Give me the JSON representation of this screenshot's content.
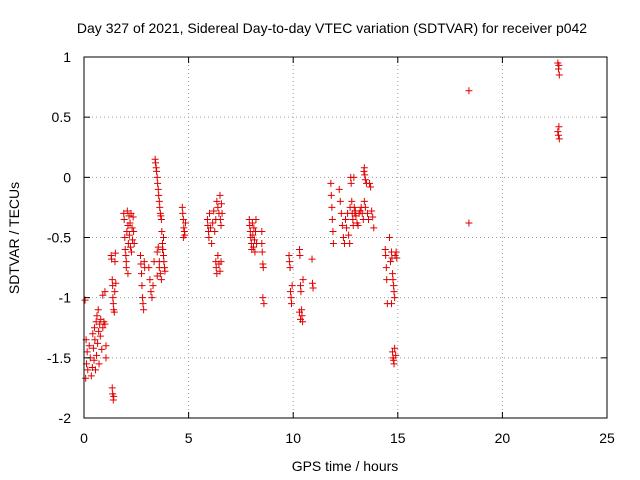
{
  "chart_data": {
    "type": "scatter",
    "title": "Day 327 of 2021, Sidereal Day-to-day VTEC variation (SDTVAR) for receiver p042",
    "xlabel": "GPS time / hours",
    "ylabel": "SDTVAR / TECUs",
    "xlim": [
      0,
      25
    ],
    "ylim": [
      -2,
      1
    ],
    "grid": true,
    "marker": "+",
    "marker_color": "#e00000",
    "xticks": [
      "0",
      "5",
      "10",
      "15",
      "20",
      "25"
    ],
    "xtick_values": [
      0,
      5,
      10,
      15,
      20,
      25
    ],
    "yticks": [
      "1",
      "0.5",
      "0",
      "-0.5",
      "-1",
      "-1.5",
      "-2"
    ],
    "ytick_values": [
      1,
      0.5,
      0,
      -0.5,
      -1,
      -1.5,
      -2
    ],
    "series": [
      {
        "name": "SDTVAR",
        "points": [
          [
            0.05,
            -1.02
          ],
          [
            0.08,
            -1.67
          ],
          [
            0.1,
            -1.35
          ],
          [
            0.12,
            -1.55
          ],
          [
            0.15,
            -1.45
          ],
          [
            0.18,
            -1.6
          ],
          [
            0.25,
            -1.4
          ],
          [
            0.3,
            -1.5
          ],
          [
            0.35,
            -1.65
          ],
          [
            0.4,
            -1.58
          ],
          [
            0.42,
            -1.3
          ],
          [
            0.45,
            -1.42
          ],
          [
            0.48,
            -1.52
          ],
          [
            0.5,
            -1.25
          ],
          [
            0.52,
            -1.35
          ],
          [
            0.55,
            -1.6
          ],
          [
            0.58,
            -1.2
          ],
          [
            0.6,
            -1.48
          ],
          [
            0.62,
            -1.15
          ],
          [
            0.65,
            -1.38
          ],
          [
            0.68,
            -1.1
          ],
          [
            0.7,
            -1.28
          ],
          [
            0.72,
            -1.55
          ],
          [
            0.75,
            -1.22
          ],
          [
            0.78,
            -1.32
          ],
          [
            0.8,
            -1.18
          ],
          [
            0.85,
            -1.43
          ],
          [
            0.9,
            -1.25
          ],
          [
            0.95,
            -1.2
          ],
          [
            1.0,
            -1.22
          ],
          [
            0.9,
            -0.98
          ],
          [
            1.0,
            -0.95
          ],
          [
            1.05,
            -1.5
          ],
          [
            1.05,
            -1.4
          ],
          [
            1.35,
            -1.75
          ],
          [
            1.37,
            -1.8
          ],
          [
            1.4,
            -1.85
          ],
          [
            1.42,
            -1.82
          ],
          [
            1.3,
            -0.65
          ],
          [
            1.32,
            -0.68
          ],
          [
            1.35,
            -0.85
          ],
          [
            1.37,
            -0.9
          ],
          [
            1.38,
            -1.0
          ],
          [
            1.4,
            -1.05
          ],
          [
            1.42,
            -1.1
          ],
          [
            1.45,
            -1.12
          ],
          [
            1.47,
            -0.95
          ],
          [
            1.48,
            -0.7
          ],
          [
            1.5,
            -0.63
          ],
          [
            1.52,
            -0.88
          ],
          [
            1.9,
            -0.3
          ],
          [
            1.92,
            -0.35
          ],
          [
            1.95,
            -0.5
          ],
          [
            1.97,
            -0.6
          ],
          [
            2.0,
            -0.65
          ],
          [
            2.02,
            -0.7
          ],
          [
            2.05,
            -0.45
          ],
          [
            2.07,
            -0.28
          ],
          [
            2.1,
            -0.4
          ],
          [
            2.12,
            -0.55
          ],
          [
            2.15,
            -0.32
          ],
          [
            2.17,
            -0.48
          ],
          [
            2.2,
            -0.38
          ],
          [
            2.22,
            -0.58
          ],
          [
            2.25,
            -0.3
          ],
          [
            2.27,
            -0.62
          ],
          [
            2.3,
            -0.42
          ],
          [
            2.32,
            -0.52
          ],
          [
            2.35,
            -0.33
          ],
          [
            2.37,
            -0.45
          ],
          [
            2.4,
            -0.55
          ],
          [
            2.02,
            -0.75
          ],
          [
            2.1,
            -0.8
          ],
          [
            2.7,
            -0.65
          ],
          [
            2.72,
            -0.72
          ],
          [
            2.75,
            -0.8
          ],
          [
            2.77,
            -0.9
          ],
          [
            2.8,
            -1.0
          ],
          [
            2.82,
            -1.05
          ],
          [
            2.85,
            -1.1
          ],
          [
            2.88,
            -0.7
          ],
          [
            2.9,
            -0.75
          ],
          [
            3.1,
            -0.75
          ],
          [
            3.15,
            -0.85
          ],
          [
            3.2,
            -0.95
          ],
          [
            3.25,
            -1.0
          ],
          [
            3.3,
            -0.9
          ],
          [
            3.35,
            -0.7
          ],
          [
            3.4,
            0.15
          ],
          [
            3.42,
            0.12
          ],
          [
            3.45,
            0.08
          ],
          [
            3.47,
            0.05
          ],
          [
            3.5,
            0.0
          ],
          [
            3.52,
            -0.05
          ],
          [
            3.55,
            -0.1
          ],
          [
            3.57,
            -0.15
          ],
          [
            3.6,
            -0.2
          ],
          [
            3.62,
            -0.25
          ],
          [
            3.65,
            -0.3
          ],
          [
            3.67,
            -0.32
          ],
          [
            3.7,
            -0.35
          ],
          [
            3.72,
            -0.45
          ],
          [
            3.75,
            -0.55
          ],
          [
            3.77,
            -0.6
          ],
          [
            3.8,
            -0.65
          ],
          [
            3.82,
            -0.7
          ],
          [
            3.85,
            -0.75
          ],
          [
            3.87,
            -0.78
          ],
          [
            3.5,
            -0.62
          ],
          [
            3.55,
            -0.58
          ],
          [
            3.6,
            -0.7
          ],
          [
            3.65,
            -0.8
          ],
          [
            3.7,
            -0.85
          ],
          [
            3.75,
            -0.6
          ],
          [
            3.8,
            -0.5
          ],
          [
            3.5,
            -0.82
          ],
          [
            3.6,
            -0.75
          ],
          [
            4.7,
            -0.25
          ],
          [
            4.72,
            -0.3
          ],
          [
            4.75,
            -0.35
          ],
          [
            4.77,
            -0.42
          ],
          [
            4.8,
            -0.45
          ],
          [
            4.82,
            -0.48
          ],
          [
            4.85,
            -0.38
          ],
          [
            4.75,
            -0.5
          ],
          [
            5.9,
            -0.35
          ],
          [
            5.92,
            -0.4
          ],
          [
            5.95,
            -0.45
          ],
          [
            5.97,
            -0.5
          ],
          [
            6.0,
            -0.3
          ],
          [
            6.05,
            -0.42
          ],
          [
            6.1,
            -0.55
          ],
          [
            6.15,
            -0.38
          ],
          [
            6.2,
            -0.28
          ],
          [
            6.25,
            -0.45
          ],
          [
            6.3,
            -0.35
          ],
          [
            6.35,
            -0.2
          ],
          [
            6.4,
            -0.25
          ],
          [
            6.45,
            -0.3
          ],
          [
            6.5,
            -0.15
          ],
          [
            6.52,
            -0.35
          ],
          [
            6.55,
            -0.4
          ],
          [
            6.57,
            -0.22
          ],
          [
            6.6,
            -0.3
          ],
          [
            6.3,
            -0.7
          ],
          [
            6.32,
            -0.75
          ],
          [
            6.35,
            -0.8
          ],
          [
            6.4,
            -0.65
          ],
          [
            6.45,
            -0.72
          ],
          [
            6.5,
            -0.78
          ],
          [
            6.55,
            -0.7
          ],
          [
            7.9,
            -0.35
          ],
          [
            7.92,
            -0.4
          ],
          [
            7.95,
            -0.45
          ],
          [
            7.97,
            -0.5
          ],
          [
            8.0,
            -0.55
          ],
          [
            8.02,
            -0.6
          ],
          [
            8.05,
            -0.38
          ],
          [
            8.07,
            -0.48
          ],
          [
            8.1,
            -0.58
          ],
          [
            8.12,
            -0.42
          ],
          [
            8.15,
            -0.52
          ],
          [
            8.17,
            -0.62
          ],
          [
            8.2,
            -0.45
          ],
          [
            8.22,
            -0.35
          ],
          [
            8.25,
            -0.55
          ],
          [
            8.5,
            -0.55
          ],
          [
            8.52,
            -0.62
          ],
          [
            8.55,
            -0.72
          ],
          [
            8.57,
            -0.75
          ],
          [
            8.5,
            -0.45
          ],
          [
            8.55,
            -1.0
          ],
          [
            8.6,
            -1.05
          ],
          [
            9.8,
            -0.65
          ],
          [
            9.82,
            -0.7
          ],
          [
            9.85,
            -0.75
          ],
          [
            9.87,
            -0.95
          ],
          [
            9.9,
            -1.0
          ],
          [
            9.92,
            -1.05
          ],
          [
            9.95,
            -0.9
          ],
          [
            10.3,
            -0.6
          ],
          [
            10.32,
            -0.65
          ],
          [
            10.35,
            -0.9
          ],
          [
            10.37,
            -0.95
          ],
          [
            10.4,
            -1.1
          ],
          [
            10.42,
            -1.15
          ],
          [
            10.45,
            -1.2
          ],
          [
            10.47,
            -0.85
          ],
          [
            10.3,
            -1.12
          ],
          [
            10.35,
            -1.18
          ],
          [
            10.9,
            -0.68
          ],
          [
            10.92,
            -0.88
          ],
          [
            10.95,
            -0.92
          ],
          [
            11.8,
            -0.05
          ],
          [
            11.82,
            -0.15
          ],
          [
            11.85,
            -0.25
          ],
          [
            11.87,
            -0.35
          ],
          [
            11.9,
            -0.45
          ],
          [
            11.92,
            -0.55
          ],
          [
            12.2,
            -0.1
          ],
          [
            12.25,
            -0.2
          ],
          [
            12.3,
            -0.3
          ],
          [
            12.35,
            -0.4
          ],
          [
            12.4,
            -0.5
          ],
          [
            12.45,
            -0.55
          ],
          [
            12.5,
            -0.35
          ],
          [
            12.55,
            -0.42
          ],
          [
            12.6,
            -0.3
          ],
          [
            12.65,
            -0.48
          ],
          [
            12.7,
            -0.55
          ],
          [
            12.72,
            -0.25
          ],
          [
            12.75,
            0.0
          ],
          [
            12.77,
            -0.05
          ],
          [
            12.8,
            -0.2
          ],
          [
            12.82,
            -0.3
          ],
          [
            12.85,
            -0.35
          ],
          [
            12.87,
            -0.4
          ],
          [
            12.9,
            0.0
          ],
          [
            12.92,
            -0.25
          ],
          [
            12.95,
            -0.3
          ],
          [
            12.97,
            -0.28
          ],
          [
            13.0,
            -0.32
          ],
          [
            13.05,
            -0.38
          ],
          [
            13.1,
            -0.4
          ],
          [
            13.15,
            -0.3
          ],
          [
            13.2,
            -0.28
          ],
          [
            13.25,
            -0.25
          ],
          [
            13.3,
            -0.3
          ],
          [
            13.35,
            -0.35
          ],
          [
            13.38,
            0.05
          ],
          [
            13.4,
            0.08
          ],
          [
            13.42,
            0.02
          ],
          [
            13.45,
            -0.02
          ],
          [
            13.5,
            -0.05
          ],
          [
            13.55,
            -0.3
          ],
          [
            13.6,
            -0.35
          ],
          [
            13.65,
            -0.05
          ],
          [
            13.7,
            -0.08
          ],
          [
            13.75,
            -0.28
          ],
          [
            13.8,
            -0.33
          ],
          [
            13.85,
            -0.42
          ],
          [
            13.4,
            -0.2
          ],
          [
            13.45,
            -0.25
          ],
          [
            14.4,
            -0.6
          ],
          [
            14.42,
            -0.65
          ],
          [
            14.45,
            -0.75
          ],
          [
            14.47,
            -0.85
          ],
          [
            14.5,
            -1.05
          ],
          [
            14.6,
            -0.5
          ],
          [
            14.65,
            -0.7
          ],
          [
            14.7,
            -0.62
          ],
          [
            14.72,
            -0.67
          ],
          [
            14.75,
            -0.8
          ],
          [
            14.77,
            -0.85
          ],
          [
            14.8,
            -0.9
          ],
          [
            14.82,
            -0.95
          ],
          [
            14.85,
            -1.0
          ],
          [
            14.87,
            -0.65
          ],
          [
            14.7,
            -1.05
          ],
          [
            14.75,
            -1.45
          ],
          [
            14.77,
            -1.5
          ],
          [
            14.8,
            -1.52
          ],
          [
            14.82,
            -1.55
          ],
          [
            14.85,
            -1.42
          ],
          [
            14.9,
            -1.48
          ],
          [
            14.92,
            -0.62
          ],
          [
            14.95,
            -0.67
          ],
          [
            18.4,
            0.72
          ],
          [
            18.4,
            -0.38
          ],
          [
            22.65,
            0.95
          ],
          [
            22.68,
            0.9
          ],
          [
            22.7,
            0.93
          ],
          [
            22.72,
            0.85
          ],
          [
            22.65,
            0.38
          ],
          [
            22.68,
            0.35
          ],
          [
            22.7,
            0.42
          ],
          [
            22.72,
            0.32
          ]
        ]
      }
    ]
  }
}
